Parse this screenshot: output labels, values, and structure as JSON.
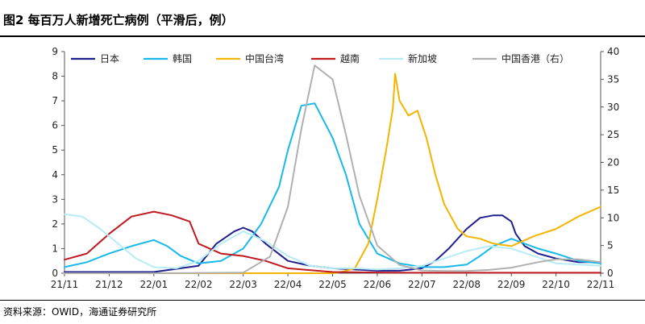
{
  "header": {
    "title": "图2  每百万人新增死亡病例（平滑后，例）"
  },
  "footer": {
    "source": "资料来源：OWID，海通证券研究所"
  },
  "chart_data": {
    "type": "line",
    "title": "图2  每百万人新增死亡病例（平滑后，例）",
    "x_ticks": [
      "21/11",
      "21/12",
      "22/01",
      "22/02",
      "22/03",
      "22/04",
      "22/05",
      "22/06",
      "22/07",
      "22/08",
      "22/09",
      "22/10",
      "22/11"
    ],
    "y_left": {
      "range": [
        0,
        9
      ],
      "ticks": [
        "0",
        "1",
        "2",
        "3",
        "4",
        "5",
        "6",
        "7",
        "8",
        "9"
      ]
    },
    "y_right": {
      "range": [
        0,
        40
      ],
      "ticks": [
        "0",
        "5",
        "10",
        "15",
        "20",
        "25",
        "30",
        "35",
        "40"
      ]
    },
    "grid": false,
    "legend_position": "top",
    "series": [
      {
        "name": "日本",
        "color": "#1f1f8f",
        "axis": "left",
        "x": [
          0,
          1,
          2,
          3,
          3.4,
          3.8,
          4.0,
          4.2,
          4.5,
          5.0,
          5.5,
          6.0,
          6.5,
          7.0,
          7.5,
          8.0,
          8.3,
          8.6,
          9.0,
          9.3,
          9.6,
          9.8,
          10.0,
          10.1,
          10.3,
          10.6,
          11.0,
          11.5,
          12.0
        ],
        "values": [
          0.05,
          0.05,
          0.05,
          0.3,
          1.2,
          1.7,
          1.85,
          1.7,
          1.2,
          0.5,
          0.3,
          0.2,
          0.15,
          0.1,
          0.1,
          0.2,
          0.5,
          1.0,
          1.8,
          2.25,
          2.35,
          2.35,
          2.1,
          1.6,
          1.1,
          0.8,
          0.6,
          0.45,
          0.45
        ]
      },
      {
        "name": "韩国",
        "color": "#19b8ea",
        "axis": "left",
        "x": [
          0,
          0.5,
          1.0,
          1.5,
          2.0,
          2.3,
          2.6,
          3.0,
          3.5,
          4.0,
          4.4,
          4.8,
          5.0,
          5.3,
          5.6,
          6.0,
          6.3,
          6.6,
          7.0,
          7.5,
          8.0,
          8.5,
          9.0,
          9.3,
          9.6,
          10.0,
          10.3,
          10.6,
          11.0,
          11.5,
          12.0
        ],
        "values": [
          0.25,
          0.45,
          0.8,
          1.1,
          1.35,
          1.1,
          0.7,
          0.4,
          0.5,
          1.0,
          2.0,
          3.5,
          5.0,
          6.8,
          6.9,
          5.5,
          4.0,
          2.0,
          0.8,
          0.4,
          0.25,
          0.25,
          0.35,
          0.7,
          1.1,
          1.4,
          1.2,
          1.0,
          0.8,
          0.5,
          0.4
        ]
      },
      {
        "name": "中国台湾",
        "color": "#f5b400",
        "axis": "left",
        "x": [
          0,
          3.0,
          6.0,
          6.2,
          6.5,
          6.8,
          7.0,
          7.2,
          7.35,
          7.4,
          7.5,
          7.7,
          7.9,
          8.1,
          8.3,
          8.5,
          8.8,
          9.0,
          9.3,
          9.6,
          10.0,
          10.5,
          11.0,
          11.5,
          12.0
        ],
        "values": [
          0,
          0,
          0,
          0.05,
          0.2,
          1.2,
          3.0,
          5.0,
          6.7,
          8.1,
          7.0,
          6.4,
          6.6,
          5.5,
          4.0,
          2.8,
          1.8,
          1.5,
          1.4,
          1.2,
          1.1,
          1.5,
          1.8,
          2.3,
          2.7
        ]
      },
      {
        "name": "越南",
        "color": "#c0191f",
        "axis": "left",
        "x": [
          0,
          0.5,
          1.0,
          1.5,
          2.0,
          2.4,
          2.8,
          3.0,
          3.5,
          4.0,
          4.5,
          5.0,
          6.0,
          7.0,
          8.0,
          9.0,
          10.0,
          11.0,
          12.0
        ],
        "values": [
          0.55,
          0.8,
          1.6,
          2.3,
          2.5,
          2.35,
          2.1,
          1.2,
          0.8,
          0.7,
          0.5,
          0.2,
          0.05,
          0.03,
          0.02,
          0.02,
          0.02,
          0.02,
          0.02
        ]
      },
      {
        "name": "新加坡",
        "color": "#b8ecf5",
        "axis": "left",
        "x": [
          0,
          0.4,
          0.8,
          1.2,
          1.6,
          2.0,
          2.5,
          3.0,
          3.5,
          4.0,
          4.5,
          5.0,
          5.5,
          6.0,
          6.5,
          7.0,
          7.5,
          8.0,
          8.5,
          9.0,
          9.5,
          10.0,
          10.5,
          11.0,
          11.5,
          12.0
        ],
        "values": [
          2.4,
          2.3,
          1.8,
          1.2,
          0.6,
          0.25,
          0.2,
          0.5,
          1.2,
          1.7,
          1.3,
          0.7,
          0.3,
          0.2,
          0.2,
          0.15,
          0.2,
          0.3,
          0.6,
          0.9,
          1.1,
          1.0,
          0.7,
          0.4,
          0.35,
          0.3
        ]
      },
      {
        "name": "中国香港（右）",
        "color": "#b0b0b0",
        "axis": "right",
        "x": [
          0,
          2.0,
          4.0,
          4.6,
          5.0,
          5.3,
          5.6,
          6.0,
          6.3,
          6.6,
          7.0,
          7.5,
          8.0,
          8.5,
          9.0,
          9.5,
          10.0,
          10.3,
          10.6,
          11.0,
          11.5,
          12.0
        ],
        "values": [
          0,
          0,
          0.1,
          3.0,
          12.0,
          26.0,
          37.5,
          35.0,
          25.0,
          14.0,
          5.0,
          1.5,
          0.5,
          0.4,
          0.4,
          0.6,
          1.0,
          1.5,
          2.0,
          2.5,
          2.5,
          2.0
        ]
      }
    ]
  }
}
